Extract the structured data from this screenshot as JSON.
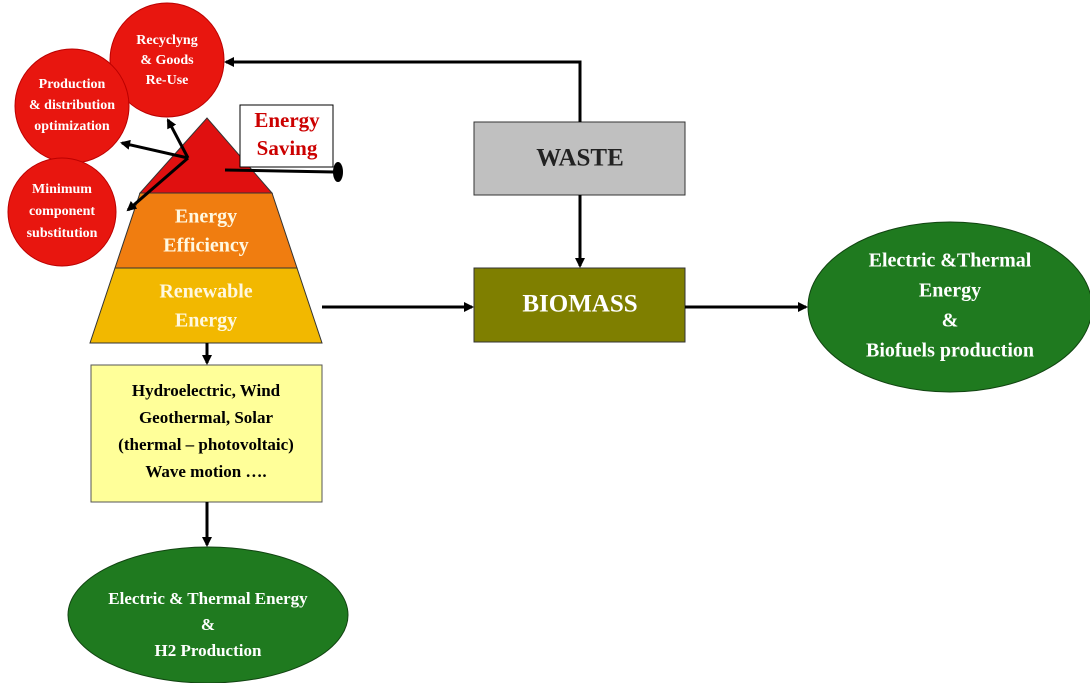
{
  "nodes": {
    "recycling": {
      "lines": [
        "Recyclyng",
        "& Goods",
        "Re-Use"
      ]
    },
    "production": {
      "lines": [
        "Production",
        "& distribution",
        "optimization"
      ]
    },
    "minimum": {
      "lines": [
        "Minimum",
        "component",
        "substitution"
      ]
    },
    "energy_saving": {
      "lines": [
        "Energy",
        "Saving"
      ]
    },
    "energy_efficiency": {
      "lines": [
        "Energy",
        "Efficiency"
      ]
    },
    "renewable_energy": {
      "lines": [
        "Renewable",
        "Energy"
      ]
    },
    "waste": {
      "lines": [
        "WASTE"
      ]
    },
    "biomass": {
      "lines": [
        "BIOMASS"
      ]
    },
    "output_right": {
      "lines": [
        "Electric &Thermal",
        "Energy",
        "&",
        "Biofuels production"
      ]
    },
    "sources": {
      "lines": [
        "Hydroelectric, Wind",
        "Geothermal, Solar",
        "(thermal – photovoltaic)",
        "Wave motion …."
      ]
    },
    "output_bottom": {
      "lines": [
        "Electric & Thermal Energy",
        "&",
        "H2 Production"
      ]
    }
  }
}
